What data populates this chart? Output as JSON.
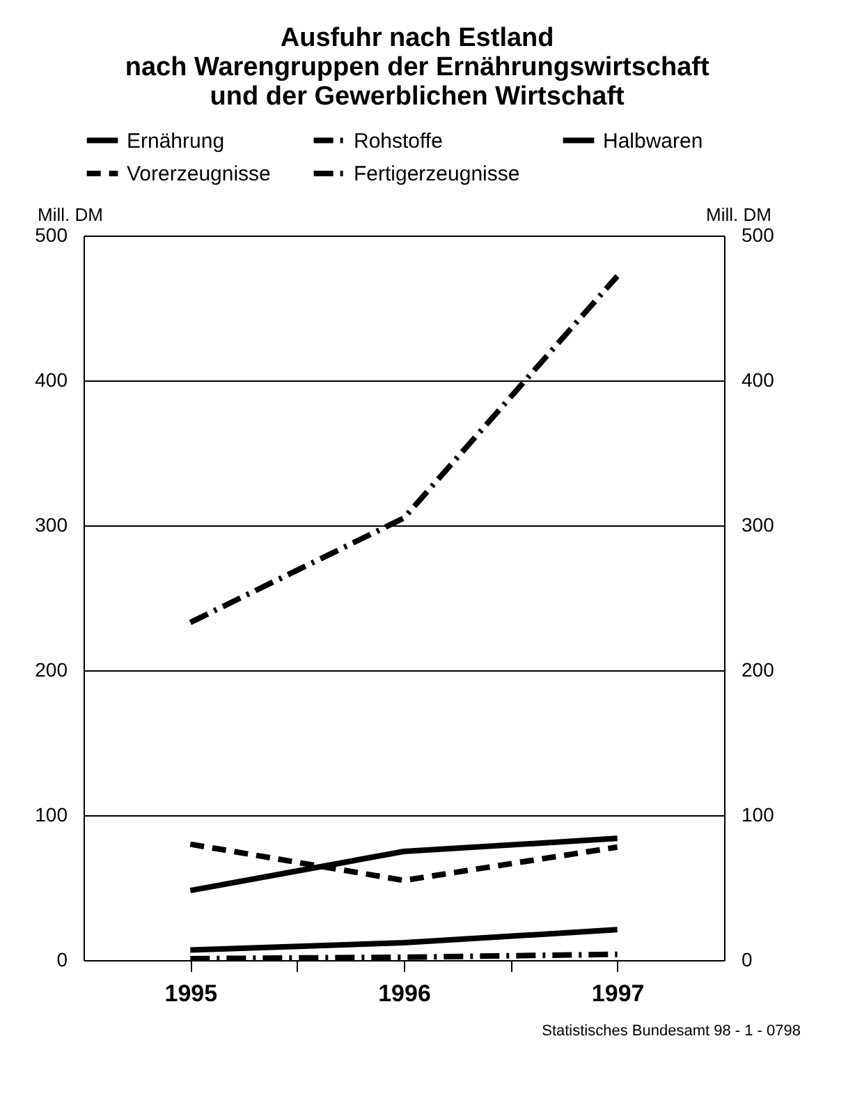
{
  "chart_data": {
    "type": "line",
    "title": [
      "Ausfuhr nach Estland",
      "nach Warengruppen der Ernährungswirtschaft",
      "und der Gewerblichen Wirtschaft"
    ],
    "x": [
      1995,
      1996,
      1997
    ],
    "xlim": [
      1994.5,
      1997.5
    ],
    "xticks": [
      1995,
      {
        "value": 1995.5,
        "label": null
      },
      1996,
      {
        "value": 1996.5,
        "label": null
      },
      1997
    ],
    "ylim": [
      0,
      500
    ],
    "yticks": [
      0,
      100,
      200,
      300,
      400,
      500
    ],
    "y2lim": [
      0,
      500
    ],
    "y2ticks": [
      0,
      100,
      200,
      300,
      400,
      500
    ],
    "ylabel": "Mill. DM",
    "y2label": "Mill. DM",
    "grid": "y",
    "legend": "top",
    "marker": "none",
    "series": [
      {
        "name": "Ernährung",
        "color": "#000000",
        "line_style": "solid",
        "values": [
          48,
          75,
          84
        ]
      },
      {
        "name": "Rohstoffe",
        "color": "#000000",
        "line_style": "dashdot",
        "values": [
          1,
          2,
          4
        ]
      },
      {
        "name": "Halbwaren",
        "color": "#000000",
        "line_style": "solid",
        "values": [
          7,
          12,
          21
        ]
      },
      {
        "name": "Vorerzeugnisse",
        "color": "#000000",
        "line_style": "dashed",
        "values": [
          80,
          55,
          78
        ]
      },
      {
        "name": "Fertigerzeugnisse",
        "color": "#000000",
        "line_style": "dashdot",
        "values": [
          233,
          305,
          472
        ]
      }
    ],
    "annotations": [
      "Statistisches Bundesamt 98 - 1 - 0798"
    ]
  }
}
